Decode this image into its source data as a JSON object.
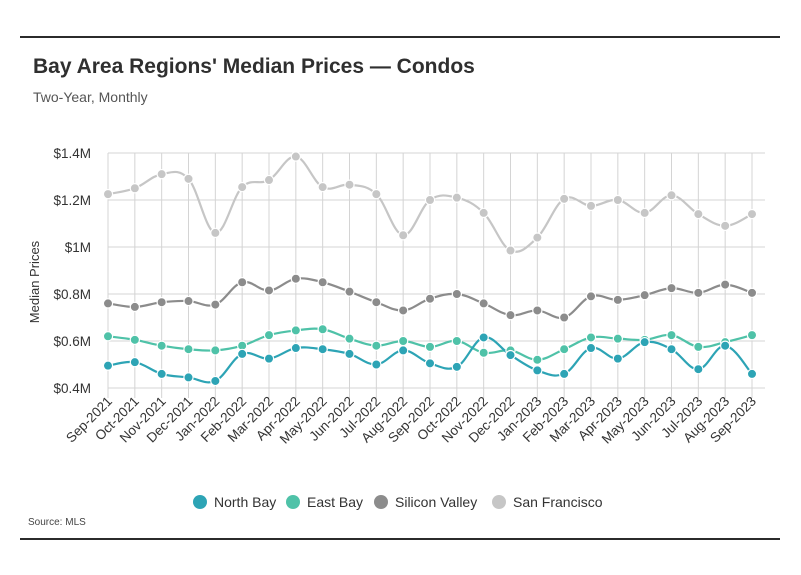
{
  "header": {
    "title": "Bay Area Regions' Median Prices — Condos",
    "subtitle": "Two-Year, Monthly"
  },
  "footer": {
    "source": "Source:  MLS"
  },
  "chart_data": {
    "type": "line",
    "ylabel": "Median Prices",
    "xlabel": "",
    "ylim": [
      0.4,
      1.4
    ],
    "yticks": [
      0.4,
      0.6,
      0.8,
      1.0,
      1.2,
      1.4
    ],
    "ytick_labels": [
      "$0.4M",
      "$0.6M",
      "$0.8M",
      "$1M",
      "$1.2M",
      "$1.4M"
    ],
    "y_unit": "millions of dollars",
    "grid": "vertical and horizontal",
    "legend_position": "bottom",
    "categories": [
      "Sep-2021",
      "Oct-2021",
      "Nov-2021",
      "Dec-2021",
      "Jan-2022",
      "Feb-2022",
      "Mar-2022",
      "Apr-2022",
      "May-2022",
      "Jun-2022",
      "Jul-2022",
      "Aug-2022",
      "Sep-2022",
      "Oct-2022",
      "Nov-2022",
      "Dec-2022",
      "Jan-2023",
      "Feb-2023",
      "Mar-2023",
      "Apr-2023",
      "May-2023",
      "Jun-2023",
      "Jul-2023",
      "Aug-2023",
      "Sep-2023"
    ],
    "series": [
      {
        "name": "North Bay",
        "color": "#2da4b5",
        "values": [
          0.495,
          0.51,
          0.46,
          0.445,
          0.43,
          0.545,
          0.525,
          0.57,
          0.565,
          0.545,
          0.5,
          0.56,
          0.505,
          0.49,
          0.615,
          0.54,
          0.475,
          0.46,
          0.57,
          0.525,
          0.595,
          0.565,
          0.48,
          0.58,
          0.46
        ]
      },
      {
        "name": "East Bay",
        "color": "#4fc2a8",
        "values": [
          0.62,
          0.605,
          0.58,
          0.565,
          0.56,
          0.58,
          0.625,
          0.645,
          0.65,
          0.61,
          0.58,
          0.6,
          0.575,
          0.6,
          0.55,
          0.56,
          0.52,
          0.565,
          0.615,
          0.61,
          0.605,
          0.625,
          0.575,
          0.595,
          0.625
        ]
      },
      {
        "name": "Silicon Valley",
        "color": "#8c8c8c",
        "values": [
          0.76,
          0.745,
          0.765,
          0.77,
          0.755,
          0.85,
          0.815,
          0.865,
          0.85,
          0.81,
          0.765,
          0.73,
          0.78,
          0.8,
          0.76,
          0.71,
          0.73,
          0.7,
          0.79,
          0.775,
          0.795,
          0.825,
          0.805,
          0.84,
          0.805
        ]
      },
      {
        "name": "San Francisco",
        "color": "#c6c6c6",
        "values": [
          1.225,
          1.25,
          1.31,
          1.29,
          1.06,
          1.255,
          1.285,
          1.385,
          1.255,
          1.265,
          1.225,
          1.05,
          1.2,
          1.21,
          1.145,
          0.985,
          1.04,
          1.205,
          1.175,
          1.2,
          1.145,
          1.22,
          1.14,
          1.09,
          1.14
        ]
      }
    ]
  }
}
